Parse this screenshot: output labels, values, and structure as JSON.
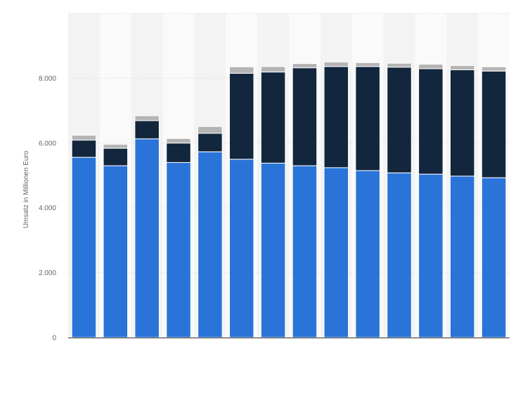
{
  "chart_data": {
    "type": "bar",
    "stacked": true,
    "ylabel": "Umsatz in Millionen Euro",
    "xlabel": "",
    "ylim": [
      0,
      10000
    ],
    "yticks": [
      0,
      2000,
      4000,
      6000,
      8000
    ],
    "ytick_labels": [
      "0",
      "2.000",
      "4.000",
      "6.000",
      "8.000"
    ],
    "grid": true,
    "categories": [
      "",
      "",
      "",
      "",
      "",
      "",
      "",
      "",
      "",
      "",
      "",
      "",
      "",
      ""
    ],
    "series": [
      {
        "color": "#2a74d9",
        "values": [
          5560,
          5300,
          6130,
          5400,
          5730,
          5500,
          5380,
          5300,
          5240,
          5150,
          5080,
          5040,
          4980,
          4930
        ]
      },
      {
        "color": "#12263d",
        "values": [
          530,
          540,
          560,
          600,
          570,
          2650,
          2810,
          3020,
          3120,
          3210,
          3260,
          3250,
          3280,
          3290
        ]
      },
      {
        "color": "#b4b4b4",
        "values": [
          150,
          120,
          150,
          140,
          210,
          200,
          170,
          130,
          140,
          120,
          120,
          140,
          130,
          130
        ]
      }
    ]
  }
}
